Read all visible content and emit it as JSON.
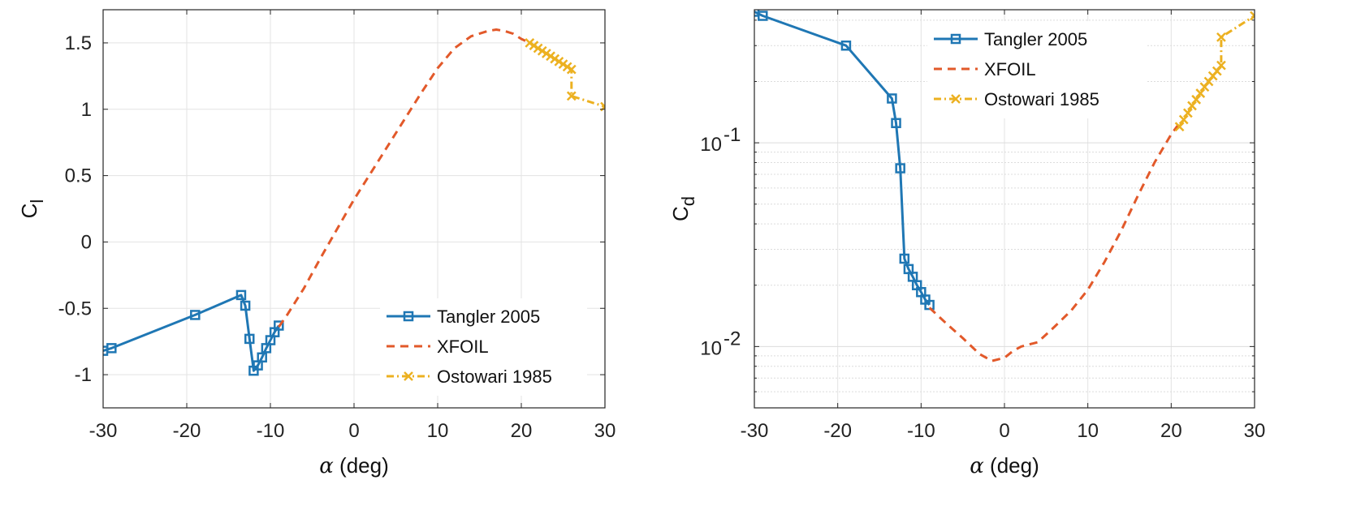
{
  "colors": {
    "tangler": "#1f77b4",
    "xfoil": "#e2592a",
    "ostowari": "#ecb121"
  },
  "chart_data": [
    {
      "type": "line",
      "ylabel_main": "C",
      "ylabel_sub": "l",
      "xlabel_sym": "α",
      "xlabel_unit": " (deg)",
      "xlim": [
        -30,
        30
      ],
      "ylim": [
        -1.25,
        1.75
      ],
      "yscale": "linear",
      "grid": true,
      "legend_position": "bottom-right",
      "xticks": [
        -30,
        -20,
        -10,
        0,
        10,
        20,
        30
      ],
      "xtick_labels": [
        "-30",
        "-20",
        "-10",
        "0",
        "10",
        "20",
        "30"
      ],
      "yticks": [
        -1,
        -0.5,
        0,
        0.5,
        1,
        1.5
      ],
      "ytick_labels": [
        "-1",
        "-0.5",
        "0",
        "0.5",
        "1",
        "1.5"
      ],
      "series": [
        {
          "name": "Tangler 2005",
          "style": "solid",
          "marker": "square",
          "x": [
            -30,
            -29,
            -19,
            -13.5,
            -13,
            -12.5,
            -12,
            -11.5,
            -11,
            -10.5,
            -10,
            -9.5,
            -9
          ],
          "y": [
            -0.82,
            -0.8,
            -0.55,
            -0.4,
            -0.48,
            -0.73,
            -0.97,
            -0.93,
            -0.87,
            -0.8,
            -0.74,
            -0.68,
            -0.63
          ]
        },
        {
          "name": "XFOIL",
          "style": "dashed",
          "marker": "none",
          "x": [
            -9,
            -8,
            -6,
            -4,
            -2,
            0,
            2,
            4,
            6,
            8,
            10,
            12,
            14,
            16,
            17,
            18,
            19,
            20,
            21
          ],
          "y": [
            -0.64,
            -0.55,
            -0.35,
            -0.12,
            0.1,
            0.32,
            0.52,
            0.72,
            0.92,
            1.12,
            1.31,
            1.46,
            1.55,
            1.59,
            1.6,
            1.59,
            1.57,
            1.53,
            1.5
          ]
        },
        {
          "name": "Ostowari 1985",
          "style": "dashdot",
          "marker": "x",
          "x": [
            21,
            21.5,
            22,
            22.5,
            23,
            23.5,
            24,
            24.5,
            25,
            25.5,
            26,
            26,
            30
          ],
          "y": [
            1.5,
            1.48,
            1.46,
            1.44,
            1.42,
            1.4,
            1.38,
            1.36,
            1.34,
            1.32,
            1.3,
            1.1,
            1.02
          ]
        }
      ]
    },
    {
      "type": "line",
      "ylabel_main": "C",
      "ylabel_sub": "d",
      "xlabel_sym": "α",
      "xlabel_unit": " (deg)",
      "xlim": [
        -30,
        30
      ],
      "ylim": [
        0.005,
        0.45
      ],
      "yscale": "log",
      "grid": true,
      "legend_position": "top-center",
      "xticks": [
        -30,
        -20,
        -10,
        0,
        10,
        20,
        30
      ],
      "xtick_labels": [
        "-30",
        "-20",
        "-10",
        "0",
        "10",
        "20",
        "30"
      ],
      "yticks": [
        0.01,
        0.1
      ],
      "ytick_labels": [
        {
          "base": "10",
          "exp": "-2"
        },
        {
          "base": "10",
          "exp": "-1"
        }
      ],
      "series": [
        {
          "name": "Tangler 2005",
          "style": "solid",
          "marker": "square",
          "x": [
            -30,
            -29,
            -19,
            -13.5,
            -13,
            -12.5,
            -12,
            -11.5,
            -11,
            -10.5,
            -10,
            -9.5,
            -9
          ],
          "y": [
            0.44,
            0.42,
            0.3,
            0.165,
            0.125,
            0.075,
            0.027,
            0.024,
            0.022,
            0.02,
            0.0185,
            0.017,
            0.016
          ]
        },
        {
          "name": "XFOIL",
          "style": "dashed",
          "marker": "none",
          "x": [
            -9,
            -7,
            -5,
            -3,
            -1.5,
            0,
            1,
            2,
            4,
            6,
            8,
            10,
            12,
            14,
            16,
            18,
            20,
            21
          ],
          "y": [
            0.0155,
            0.013,
            0.011,
            0.0092,
            0.0085,
            0.0088,
            0.0095,
            0.01,
            0.0105,
            0.0125,
            0.015,
            0.019,
            0.026,
            0.037,
            0.055,
            0.08,
            0.11,
            0.125
          ]
        },
        {
          "name": "Ostowari 1985",
          "style": "dashdot",
          "marker": "x",
          "x": [
            21,
            21.5,
            22,
            22.5,
            23,
            23.5,
            24,
            24.5,
            25,
            25.5,
            26,
            26,
            30
          ],
          "y": [
            0.12,
            0.13,
            0.14,
            0.152,
            0.163,
            0.175,
            0.188,
            0.2,
            0.213,
            0.225,
            0.24,
            0.33,
            0.42
          ]
        }
      ]
    }
  ]
}
